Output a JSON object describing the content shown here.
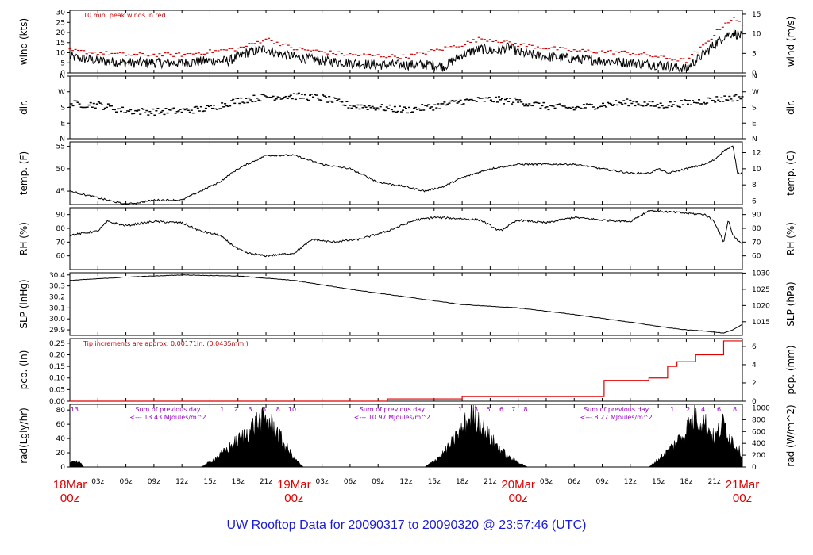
{
  "footer": "UW Rooftop Data for 20090317  to  20090320 @ 23:57:46  (UTC)",
  "colors": {
    "note": "#cc0000",
    "solar": "#9900cc",
    "footer": "#1a1ad9",
    "day": "#e00000",
    "precip": "#e00000"
  },
  "time_axis": {
    "hour_ticks": [
      "03z",
      "06z",
      "09z",
      "12z",
      "15z",
      "18z",
      "21z",
      "00z"
    ],
    "day_labels": [
      {
        "date": "18Mar",
        "time": "00z"
      },
      {
        "date": "19Mar",
        "time": "00z"
      },
      {
        "date": "20Mar",
        "time": "00z"
      },
      {
        "date": "21Mar",
        "time": "00z"
      }
    ]
  },
  "panels": {
    "wind": {
      "left_label": "wind (kts)",
      "right_label": "wind (m/s)",
      "note": "10 min. peak winds in red",
      "left_ticks": [
        "0",
        "5",
        "10",
        "15",
        "20",
        "25",
        "30"
      ],
      "right_ticks": [
        "0",
        "5",
        "10",
        "15"
      ]
    },
    "dir": {
      "left_label": "dir.",
      "right_label": "dir.",
      "ticks": [
        "N",
        "E",
        "S",
        "W",
        "N"
      ]
    },
    "temp": {
      "left_label": "temp. (F)",
      "right_label": "temp. (C)",
      "left_ticks": [
        "45",
        "50",
        "55"
      ],
      "right_ticks": [
        "6",
        "8",
        "10",
        "12"
      ]
    },
    "rh": {
      "left_label": "RH (%)",
      "right_label": "RH (%)",
      "left_ticks": [
        "60",
        "70",
        "80",
        "90"
      ],
      "right_ticks": [
        "60",
        "70",
        "80",
        "90"
      ]
    },
    "slp": {
      "left_label": "SLP (inHg)",
      "right_label": "SLP (hPa)",
      "left_ticks": [
        "29.9",
        "30.0",
        "30.1",
        "30.2",
        "30.3",
        "30.4"
      ],
      "right_ticks": [
        "1015",
        "1020",
        "1025",
        "1030"
      ]
    },
    "pcp": {
      "left_label": "pcp. (in)",
      "right_label": "pcp. (mm)",
      "note": "Tip increments are approx. 0.00171in. (0.0435mm.)",
      "left_ticks": [
        "0.00",
        "0.05",
        "0.10",
        "0.15",
        "0.20",
        "0.25"
      ],
      "right_ticks": [
        "0",
        "2",
        "4",
        "6"
      ]
    },
    "rad": {
      "left_label": "rad(Lgly/hr)",
      "right_label": "rad (W/m^2)",
      "left_ticks": [
        "0",
        "20",
        "40",
        "60",
        "80"
      ],
      "right_ticks": [
        "0",
        "200",
        "400",
        "600",
        "800",
        "1000"
      ],
      "sums": [
        {
          "title": "Sum of previous day",
          "value": "<--- 13.43 MJoules/m^2"
        },
        {
          "title": "Sum of previous day",
          "value": "<--- 10.97 MJoules/m^2"
        },
        {
          "title": "Sum of previous day",
          "value": "<--- 8.27 MJoules/m^2"
        }
      ],
      "hour_marks": [
        "13",
        "1",
        "2",
        "3",
        "5",
        "8",
        "10",
        "1",
        "3",
        "5",
        "6",
        "7",
        "8",
        "1",
        "2",
        "4",
        "6",
        "8"
      ]
    }
  },
  "chart_data": {
    "type": "line",
    "x_unit": "hours since 18Mar 00z",
    "xlim": [
      0,
      72
    ],
    "series": [
      {
        "name": "wind",
        "unit": "kts",
        "ylim": [
          0,
          30
        ],
        "x": [
          0,
          3,
          6,
          9,
          12,
          15,
          17,
          18,
          19,
          20,
          21,
          22,
          23,
          24,
          27,
          30,
          33,
          36,
          39,
          40,
          42,
          44,
          45,
          46,
          47,
          48,
          51,
          54,
          57,
          60,
          63,
          66,
          67,
          68,
          69,
          70,
          71,
          72
        ],
        "values": [
          8,
          6,
          5,
          5,
          5,
          6,
          6,
          8,
          10,
          11,
          12,
          10,
          9,
          8,
          6,
          5,
          4,
          4,
          4,
          3,
          9,
          12,
          11,
          11,
          13,
          10,
          8,
          7,
          6,
          5,
          4,
          2,
          6,
          10,
          14,
          18,
          20,
          18
        ]
      },
      {
        "name": "peak wind",
        "unit": "kts",
        "ylim": [
          0,
          30
        ],
        "x": [
          0,
          6,
          12,
          18,
          20,
          21,
          24,
          30,
          36,
          42,
          44,
          46,
          48,
          54,
          60,
          66,
          68,
          70,
          71,
          72
        ],
        "values": [
          11,
          9,
          9,
          12,
          15,
          17,
          12,
          9,
          8,
          14,
          17,
          16,
          14,
          11,
          10,
          6,
          14,
          24,
          27,
          24
        ]
      },
      {
        "name": "dir",
        "unit": "compass",
        "ylim": [
          "N",
          "E",
          "S",
          "W",
          "N"
        ],
        "x": [
          0,
          3,
          6,
          9,
          12,
          15,
          18,
          21,
          24,
          27,
          30,
          33,
          36,
          39,
          42,
          45,
          48,
          51,
          54,
          57,
          60,
          63,
          66,
          69,
          72
        ],
        "values": [
          200,
          195,
          160,
          155,
          160,
          175,
          220,
          240,
          245,
          235,
          190,
          180,
          165,
          185,
          215,
          225,
          215,
          185,
          175,
          195,
          210,
          190,
          205,
          225,
          240
        ]
      },
      {
        "name": "temp",
        "unit": "F",
        "ylim": [
          42,
          56
        ],
        "x": [
          0,
          2,
          4,
          6,
          9,
          12,
          14,
          16,
          18,
          20,
          21,
          24,
          27,
          30,
          33,
          36,
          38,
          40,
          42,
          45,
          48,
          51,
          54,
          57,
          60,
          62,
          63,
          64,
          66,
          68,
          69,
          70,
          71,
          71.5,
          72
        ],
        "values": [
          45,
          44,
          43,
          42,
          43,
          43,
          45,
          47,
          50,
          52,
          53,
          53,
          51,
          50,
          47,
          46,
          45,
          46,
          48,
          50,
          51,
          51,
          51,
          50,
          49,
          49,
          50,
          49,
          50,
          51,
          52,
          54,
          55,
          49,
          49
        ]
      },
      {
        "name": "RH",
        "unit": "%",
        "ylim": [
          50,
          95
        ],
        "x": [
          0,
          3,
          4,
          6,
          9,
          12,
          14,
          16,
          18,
          19,
          21,
          24,
          26,
          28,
          31,
          34,
          37,
          39,
          42,
          44,
          46,
          48,
          51,
          54,
          57,
          60,
          62,
          64,
          66,
          68,
          69,
          70,
          70.5,
          71,
          72
        ],
        "values": [
          75,
          78,
          85,
          82,
          85,
          84,
          78,
          75,
          65,
          62,
          60,
          62,
          72,
          70,
          72,
          78,
          86,
          88,
          87,
          86,
          78,
          86,
          84,
          88,
          86,
          85,
          93,
          92,
          91,
          90,
          85,
          70,
          86,
          75,
          68
        ]
      },
      {
        "name": "SLP",
        "unit": "inHg",
        "ylim": [
          29.85,
          30.42
        ],
        "x": [
          0,
          6,
          12,
          18,
          24,
          30,
          36,
          42,
          48,
          54,
          60,
          64,
          66,
          68,
          69,
          70,
          71,
          72
        ],
        "values": [
          30.35,
          30.38,
          30.4,
          30.39,
          30.35,
          30.27,
          30.2,
          30.13,
          30.1,
          30.04,
          29.97,
          29.92,
          29.9,
          29.89,
          29.88,
          29.87,
          29.9,
          29.95
        ]
      },
      {
        "name": "pcp",
        "unit": "in",
        "ylim": [
          0,
          0.27
        ],
        "x": [
          0,
          33,
          34,
          41,
          42,
          57,
          57.2,
          61,
          62,
          64,
          65,
          67,
          68,
          69,
          70,
          71,
          72
        ],
        "values": [
          0,
          0,
          0.01,
          0.01,
          0.02,
          0.02,
          0.09,
          0.09,
          0.1,
          0.15,
          0.17,
          0.2,
          0.2,
          0.2,
          0.26,
          0.26,
          0.26
        ]
      },
      {
        "name": "rad",
        "unit": "Lgly/hr",
        "ylim": [
          0,
          88
        ],
        "x": [
          0,
          1,
          1.5,
          14,
          15,
          16,
          17,
          18,
          19,
          20,
          21,
          22,
          23,
          24,
          25,
          38,
          39,
          40,
          41,
          42,
          43,
          44,
          45,
          46,
          47,
          48,
          49,
          62,
          63,
          64,
          65,
          66,
          67,
          68,
          69,
          70,
          71,
          72
        ],
        "values": [
          10,
          8,
          0,
          0,
          8,
          18,
          30,
          42,
          55,
          70,
          76,
          60,
          35,
          15,
          0,
          0,
          10,
          22,
          40,
          60,
          85,
          70,
          45,
          30,
          15,
          8,
          0,
          0,
          12,
          25,
          40,
          60,
          80,
          70,
          45,
          70,
          40,
          20
        ]
      }
    ]
  }
}
